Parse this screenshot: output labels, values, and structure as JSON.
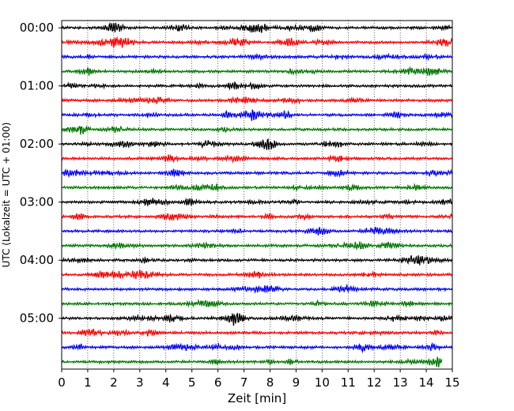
{
  "chart_data": {
    "type": "line",
    "title": "",
    "xlabel": "Zeit  [min]",
    "ylabel": "UTC (Lokalzeit = UTC + 01:00)",
    "xlim": [
      0,
      15
    ],
    "ylim": [
      -0.5,
      23.5
    ],
    "x_ticks": [
      "0",
      "1",
      "2",
      "3",
      "4",
      "5",
      "6",
      "7",
      "8",
      "9",
      "10",
      "11",
      "12",
      "13",
      "14",
      "15"
    ],
    "y_ticks": [
      {
        "label": "00:00",
        "row": 0
      },
      {
        "label": "01:00",
        "row": 4
      },
      {
        "label": "02:00",
        "row": 8
      },
      {
        "label": "03:00",
        "row": 12
      },
      {
        "label": "04:00",
        "row": 16
      },
      {
        "label": "05:00",
        "row": 20
      }
    ],
    "grid": "vertical dotted at each minute",
    "trace_colors": [
      "#000000",
      "#ff0000",
      "#0000ff",
      "#007700"
    ],
    "trace_count": 24,
    "last_trace_end_min": 14.6
  }
}
